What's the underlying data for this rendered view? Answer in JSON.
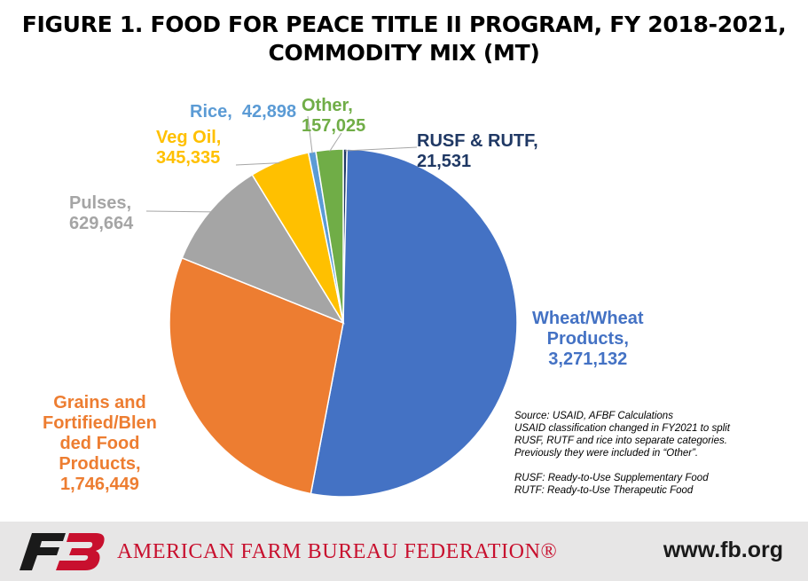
{
  "title_lines": [
    "FIGURE 1. FOOD FOR PEACE TITLE II PROGRAM, FY 2018-2021,",
    "COMMODITY MIX (MT)"
  ],
  "chart_data": {
    "type": "pie",
    "title": "FIGURE 1. FOOD FOR PEACE TITLE II PROGRAM, FY 2018-2021, COMMODITY MIX (MT)",
    "unit": "MT",
    "slices": [
      {
        "name_lines": [
          "RUSF & RUTF,"
        ],
        "value": 21531,
        "value_text": "21,531",
        "color": "#1f3864"
      },
      {
        "name_lines": [
          "Wheat/Wheat",
          "Products,"
        ],
        "value": 3271132,
        "value_text": "3,271,132",
        "color": "#4472c4"
      },
      {
        "name_lines": [
          "Grains and",
          "Fortified/Blen",
          "ded Food",
          "Products,"
        ],
        "value": 1746449,
        "value_text": "1,746,449",
        "color": "#ed7d31"
      },
      {
        "name_lines": [
          "Pulses,"
        ],
        "value": 629664,
        "value_text": "629,664",
        "color": "#a5a5a5"
      },
      {
        "name_lines": [
          "Veg Oil,"
        ],
        "value": 345335,
        "value_text": "345,335",
        "color": "#ffc000"
      },
      {
        "name_lines": [
          "Rice,"
        ],
        "value": 42898,
        "value_text": "42,898",
        "color": "#5b9bd5"
      },
      {
        "name_lines": [
          "Other,"
        ],
        "value": 157025,
        "value_text": "157,025",
        "color": "#70ad47"
      }
    ]
  },
  "notes": {
    "lines": [
      "Source: USAID, AFBF Calculations",
      "USAID classification changed in FY2021 to split",
      "RUSF, RUTF and rice into separate categories.",
      "Previously they were included in “Other”.",
      "",
      "RUSF: Ready-to-Use Supplementary Food",
      "RUTF: Ready-to-Use Therapeutic Food"
    ]
  },
  "footer": {
    "logo_icon": "fb-logo-icon",
    "org_name": "AMERICAN FARM BUREAU FEDERATION®",
    "website": "www.fb.org",
    "background": "#e7e6e6",
    "org_color": "#c8102e"
  }
}
